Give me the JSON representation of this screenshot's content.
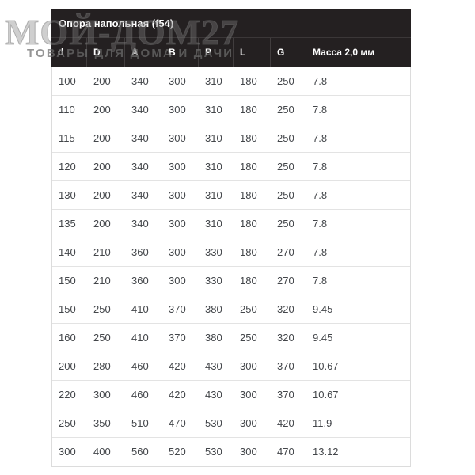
{
  "watermark": {
    "brand": "МОЙ-ДОМ27",
    "tagline": "ТОВАРЫ ДЛЯ ДОМА И ДАЧИ"
  },
  "table": {
    "title": "Опора напольная (f54)",
    "columns": [
      "d",
      "D",
      "A",
      "B",
      "P",
      "L",
      "G",
      "Масса 2,0 мм"
    ],
    "rows": [
      [
        "100",
        "200",
        "340",
        "300",
        "310",
        "180",
        "250",
        "7.8"
      ],
      [
        "110",
        "200",
        "340",
        "300",
        "310",
        "180",
        "250",
        "7.8"
      ],
      [
        "115",
        "200",
        "340",
        "300",
        "310",
        "180",
        "250",
        "7.8"
      ],
      [
        "120",
        "200",
        "340",
        "300",
        "310",
        "180",
        "250",
        "7.8"
      ],
      [
        "130",
        "200",
        "340",
        "300",
        "310",
        "180",
        "250",
        "7.8"
      ],
      [
        "135",
        "200",
        "340",
        "300",
        "310",
        "180",
        "250",
        "7.8"
      ],
      [
        "140",
        "210",
        "360",
        "300",
        "330",
        "180",
        "270",
        "7.8"
      ],
      [
        "150",
        "210",
        "360",
        "300",
        "330",
        "180",
        "270",
        "7.8"
      ],
      [
        "150",
        "250",
        "410",
        "370",
        "380",
        "250",
        "320",
        "9.45"
      ],
      [
        "160",
        "250",
        "410",
        "370",
        "380",
        "250",
        "320",
        "9.45"
      ],
      [
        "200",
        "280",
        "460",
        "420",
        "430",
        "300",
        "370",
        "10.67"
      ],
      [
        "220",
        "300",
        "460",
        "420",
        "430",
        "300",
        "370",
        "10.67"
      ],
      [
        "250",
        "350",
        "510",
        "470",
        "530",
        "300",
        "420",
        "11.9"
      ],
      [
        "300",
        "400",
        "560",
        "520",
        "530",
        "300",
        "470",
        "13.12"
      ]
    ]
  },
  "colors": {
    "header_bg": "#242021",
    "header_text": "#ffffff",
    "data_text": "#43464a",
    "row_border": "#e3e3e3",
    "watermark_gray": "#8c8c8c"
  }
}
